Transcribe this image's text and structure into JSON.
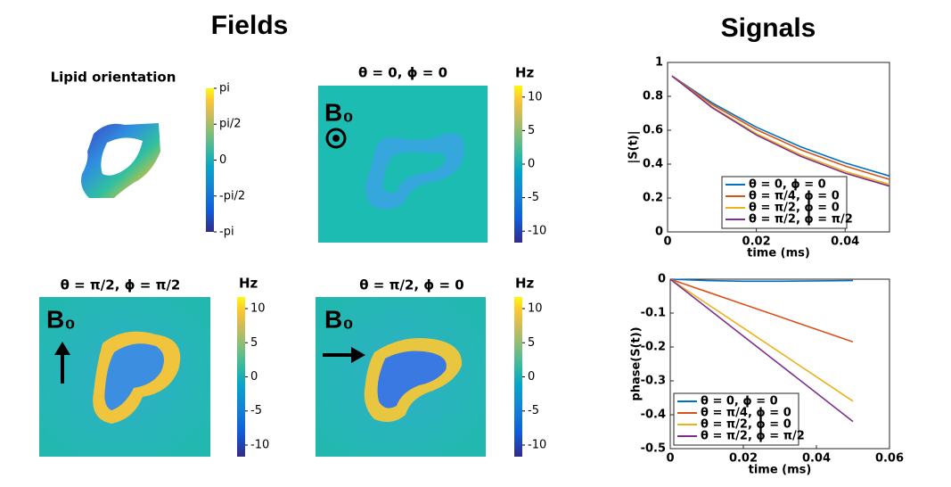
{
  "fields": {
    "title": "Fields",
    "panels": [
      {
        "title": "Lipid orientation",
        "colorbar": {
          "clim": [
            -3.14159,
            3.14159
          ],
          "ticks": [
            {
              "value": 3.14159,
              "label": "pi"
            },
            {
              "value": 1.5708,
              "label": "pi/2"
            },
            0,
            {
              "value": -1.5708,
              "label": "-pi/2"
            },
            {
              "value": -3.14159,
              "label": "-pi"
            }
          ]
        }
      },
      {
        "title": "θ = 0, ϕ = 0",
        "unit": "Hz",
        "field_label": "B₀",
        "colorbar": {
          "clim": [
            -11.7,
            11.7
          ],
          "ticks": [
            10,
            5,
            0,
            -5,
            -10
          ]
        }
      },
      {
        "title": "θ = π/2, ϕ = π/2",
        "unit": "Hz",
        "field_label": "B₀",
        "colorbar": {
          "clim": [
            -11.7,
            11.7
          ],
          "ticks": [
            10,
            5,
            0,
            -5,
            -10
          ]
        }
      },
      {
        "title": "θ = π/2, ϕ = 0",
        "unit": "Hz",
        "field_label": "B₀",
        "colorbar": {
          "clim": [
            -11.7,
            11.7
          ],
          "ticks": [
            10,
            5,
            0,
            -5,
            -10
          ]
        }
      }
    ]
  },
  "signals_title": "Signals",
  "chart_data": [
    {
      "type": "line",
      "xlabel": "time (ms)",
      "ylabel": "|S(t)|",
      "x": [
        0.001,
        0.01,
        0.02,
        0.03,
        0.04,
        0.05
      ],
      "xlim": [
        0,
        0.05
      ],
      "xticks": [
        0,
        0.02,
        0.04
      ],
      "ylim": [
        0,
        1
      ],
      "yticks": [
        0,
        0.2,
        0.4,
        0.6,
        0.8,
        1
      ],
      "legend": "lower right",
      "series": [
        {
          "name": "θ = 0, ϕ = 0",
          "color": "#0072bd",
          "values": [
            0.92,
            0.762,
            0.618,
            0.502,
            0.407,
            0.33
          ]
        },
        {
          "name": "θ = π/4, ϕ = 0",
          "color": "#d95319",
          "values": [
            0.92,
            0.752,
            0.604,
            0.485,
            0.389,
            0.31
          ]
        },
        {
          "name": "θ = π/2, ϕ = 0",
          "color": "#edb120",
          "values": [
            0.92,
            0.738,
            0.58,
            0.455,
            0.357,
            0.28
          ]
        },
        {
          "name": "θ = π/2, ϕ = π/2",
          "color": "#7e2f8e",
          "values": [
            0.92,
            0.734,
            0.572,
            0.446,
            0.347,
            0.27
          ]
        }
      ]
    },
    {
      "type": "line",
      "xlabel": "time (ms)",
      "ylabel": "phase(S(t))",
      "x": [
        0,
        0.01,
        0.02,
        0.03,
        0.04,
        0.05
      ],
      "xlim": [
        0,
        0.06
      ],
      "xticks": [
        0,
        0.02,
        0.04,
        0.06
      ],
      "ylim": [
        -0.5,
        0
      ],
      "yticks": [
        -0.5,
        -0.4,
        -0.3,
        -0.2,
        -0.1,
        0
      ],
      "legend": "lower left",
      "series": [
        {
          "name": "θ = 0, ϕ = 0",
          "color": "#0072bd",
          "values": [
            0,
            -0.004,
            -0.006,
            -0.006,
            -0.005,
            -0.004
          ]
        },
        {
          "name": "θ = π/4, ϕ = 0",
          "color": "#d95319",
          "values": [
            0,
            -0.037,
            -0.074,
            -0.111,
            -0.148,
            -0.185
          ]
        },
        {
          "name": "θ = π/2, ϕ = 0",
          "color": "#edb120",
          "values": [
            0,
            -0.072,
            -0.144,
            -0.216,
            -0.288,
            -0.36
          ]
        },
        {
          "name": "θ = π/2, ϕ = π/2",
          "color": "#7e2f8e",
          "values": [
            0,
            -0.084,
            -0.168,
            -0.252,
            -0.336,
            -0.42
          ]
        }
      ]
    }
  ]
}
